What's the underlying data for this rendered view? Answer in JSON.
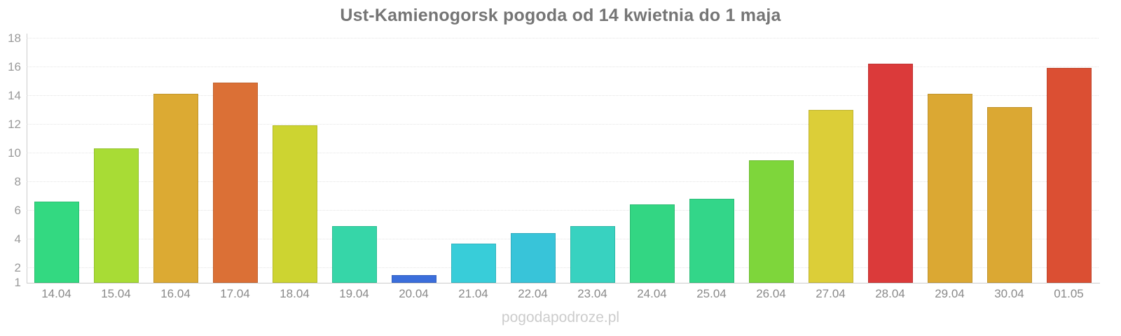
{
  "chart_data": {
    "type": "bar",
    "title": "Ust-Kamienogorsk pogoda od 14 kwietnia do 1 maja",
    "xlabel": "",
    "ylabel": "",
    "ylim": [
      1,
      18
    ],
    "yticks": [
      18,
      16,
      14,
      12,
      10,
      8,
      6,
      4,
      2,
      1
    ],
    "grid": "horizontal-dotted",
    "legend": "none",
    "categories": [
      "14.04",
      "15.04",
      "16.04",
      "17.04",
      "18.04",
      "19.04",
      "20.04",
      "21.04",
      "22.04",
      "23.04",
      "24.04",
      "25.04",
      "26.04",
      "27.04",
      "28.04",
      "29.04",
      "30.04",
      "01.05"
    ],
    "values": [
      6.6,
      10.3,
      14.1,
      14.9,
      11.9,
      4.9,
      1.5,
      3.7,
      4.4,
      4.9,
      6.4,
      6.8,
      9.5,
      13.0,
      16.2,
      14.1,
      13.2,
      15.9
    ],
    "bar_colors": [
      "#33d981",
      "#a8dc35",
      "#dcaa33",
      "#db7036",
      "#cdd431",
      "#36d6a8",
      "#3b6edb",
      "#38cdd9",
      "#38c4d9",
      "#38d2c0",
      "#33d683",
      "#33d689",
      "#7ed63b",
      "#dcce38",
      "#db3a3a",
      "#dba833",
      "#dba833",
      "#db4f33"
    ]
  },
  "footer": {
    "watermark": "pogodapodroze.pl"
  },
  "colors": {
    "background": "#ffffff",
    "title_text": "#757575",
    "axis_line": "#cccccc",
    "gridline": "#e4e4e4",
    "y_label_text": "#999999",
    "x_label_text": "#8a8a8a",
    "watermark_text": "#cccccc"
  }
}
